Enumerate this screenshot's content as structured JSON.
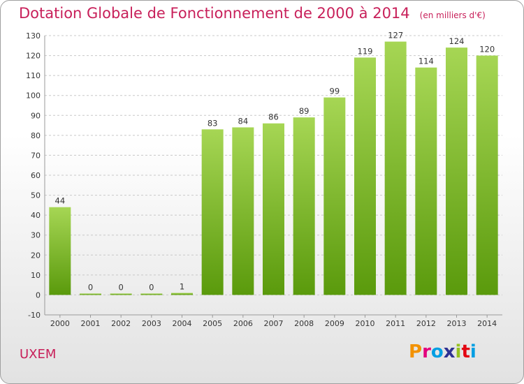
{
  "header": {
    "title": "Dotation Globale de Fonctionnement de 2000 à 2014",
    "unit": "(en milliers d'€)"
  },
  "footer": {
    "commune": "UXEM",
    "brand": "Proxiti",
    "brand_letters": [
      "P",
      "r",
      "o",
      "x",
      "i",
      "t",
      "i"
    ],
    "brand_colors": [
      "#f39200",
      "#e3007d",
      "#009fe3",
      "#2e3192",
      "#95c11f",
      "#e30613",
      "#009fe3"
    ]
  },
  "colors": {
    "title": "#c8205a",
    "bar_light": "#a6d654",
    "bar_dark": "#5a9a0c",
    "grid": "#c8c8c8"
  },
  "chart_data": {
    "type": "bar",
    "categories": [
      "2000",
      "2001",
      "2002",
      "2003",
      "2004",
      "2005",
      "2006",
      "2007",
      "2008",
      "2009",
      "2010",
      "2011",
      "2012",
      "2013",
      "2014"
    ],
    "values": [
      44,
      0,
      0,
      0,
      1,
      83,
      84,
      86,
      89,
      99,
      119,
      127,
      114,
      124,
      120
    ],
    "data_labels": [
      "44",
      "0",
      "0",
      "0",
      "1",
      "83",
      "84",
      "86",
      "89",
      "99",
      "119",
      "127",
      "114",
      "124",
      "120"
    ],
    "y_ticks": [
      "-10",
      "0",
      "10",
      "20",
      "30",
      "40",
      "50",
      "60",
      "70",
      "80",
      "90",
      "100",
      "110",
      "120",
      "130"
    ],
    "ylim": [
      -10,
      130
    ],
    "grid": true,
    "legend": "none"
  }
}
